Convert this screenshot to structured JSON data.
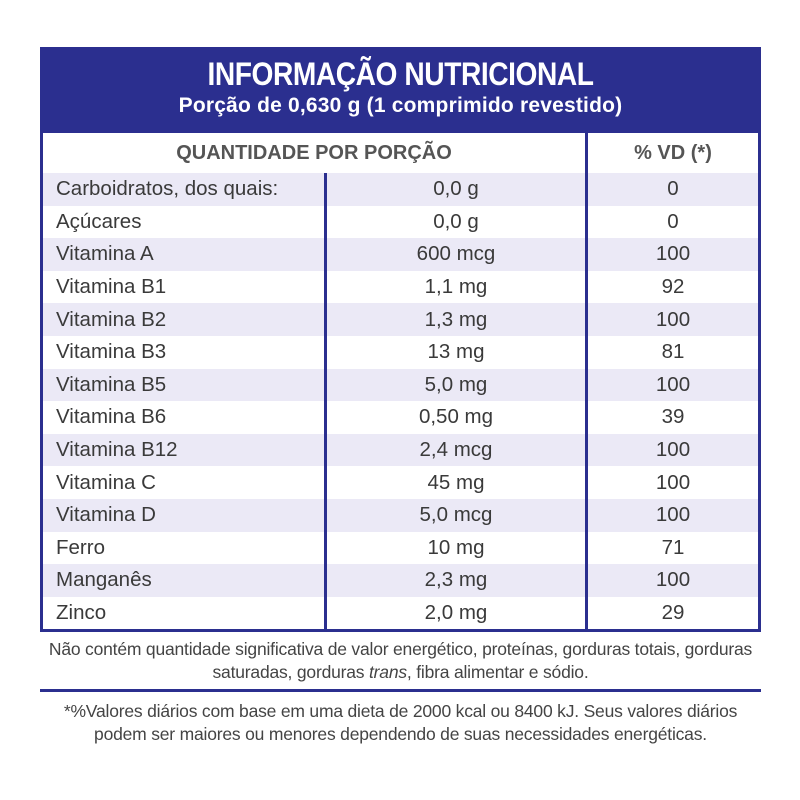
{
  "header": {
    "title": "INFORMAÇÃO NUTRICIONAL",
    "subtitle": "Porção de 0,630 g (1 comprimido revestido)"
  },
  "table": {
    "col_quantity": "QUANTIDADE POR PORÇÃO",
    "col_vd": "% VD (*)",
    "rows": [
      {
        "name": "Carboidratos, dos quais:",
        "amount": "0,0 g",
        "vd": "0"
      },
      {
        "name": "Açúcares",
        "amount": "0,0 g",
        "vd": "0"
      },
      {
        "name": "Vitamina A",
        "amount": "600 mcg",
        "vd": "100"
      },
      {
        "name": "Vitamina B1",
        "amount": "1,1 mg",
        "vd": "92"
      },
      {
        "name": "Vitamina B2",
        "amount": "1,3 mg",
        "vd": "100"
      },
      {
        "name": "Vitamina B3",
        "amount": "13 mg",
        "vd": "81"
      },
      {
        "name": "Vitamina B5",
        "amount": "5,0 mg",
        "vd": "100"
      },
      {
        "name": "Vitamina B6",
        "amount": "0,50 mg",
        "vd": "39"
      },
      {
        "name": "Vitamina B12",
        "amount": "2,4 mcg",
        "vd": "100"
      },
      {
        "name": "Vitamina C",
        "amount": "45 mg",
        "vd": "100"
      },
      {
        "name": "Vitamina D",
        "amount": "5,0 mcg",
        "vd": "100"
      },
      {
        "name": "Ferro",
        "amount": "10 mg",
        "vd": "71"
      },
      {
        "name": "Manganês",
        "amount": "2,3 mg",
        "vd": "100"
      },
      {
        "name": "Zinco",
        "amount": "2,0 mg",
        "vd": "29"
      }
    ]
  },
  "notes": {
    "not_contain_a": "Não contém quantidade significativa de valor energético, proteínas, gorduras totais, gorduras saturadas, gorduras ",
    "not_contain_trans": "trans",
    "not_contain_b": ", fibra alimentar e sódio.",
    "footnote": "*%Valores diários com base em uma dieta de 2000 kcal ou 8400 kJ. Seus valores diários podem ser maiores ou menores dependendo de suas necessidades energéticas."
  },
  "colors": {
    "brand": "#2b2f8f",
    "row_alt": "#ebe9f6"
  }
}
